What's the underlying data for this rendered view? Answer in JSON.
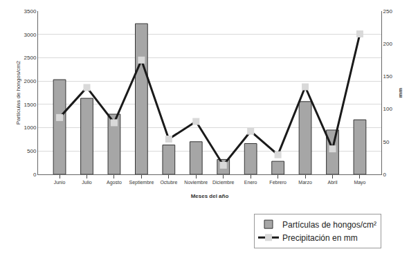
{
  "chart_data": {
    "type": "bar",
    "x_label": "Meses del año",
    "y_label": "Partículas de hongos/cm2",
    "y2_label": "mm",
    "categories": [
      "Junio",
      "Julio",
      "Agosto",
      "Septiembre",
      "Octubre",
      "Noviembre",
      "Diciembre",
      "Enero",
      "Febrero",
      "Marzo",
      "Abril",
      "Mayo"
    ],
    "series": [
      {
        "name": "Partículas de hongos/cm²",
        "type": "bar",
        "color": "#a6a6a6",
        "axis": "y",
        "values": [
          2030,
          1630,
          1290,
          3230,
          630,
          700,
          320,
          660,
          280,
          1560,
          950,
          1170
        ]
      },
      {
        "name": "Precipitación en mm",
        "type": "line",
        "color": "#1a1a1a",
        "axis": "y2",
        "marker": "square",
        "line_style": "solid",
        "values": [
          87,
          133,
          79,
          175,
          54,
          81,
          14,
          66,
          30,
          134,
          39,
          215
        ]
      }
    ],
    "ylim": [
      0,
      3500
    ],
    "yticks": [
      0,
      500,
      1000,
      1500,
      2000,
      2500,
      3000,
      3500
    ],
    "y2lim": [
      0,
      250
    ],
    "y2ticks": [
      0,
      50,
      100,
      150,
      200,
      250
    ],
    "grid": true,
    "legend": "bottom-right"
  }
}
